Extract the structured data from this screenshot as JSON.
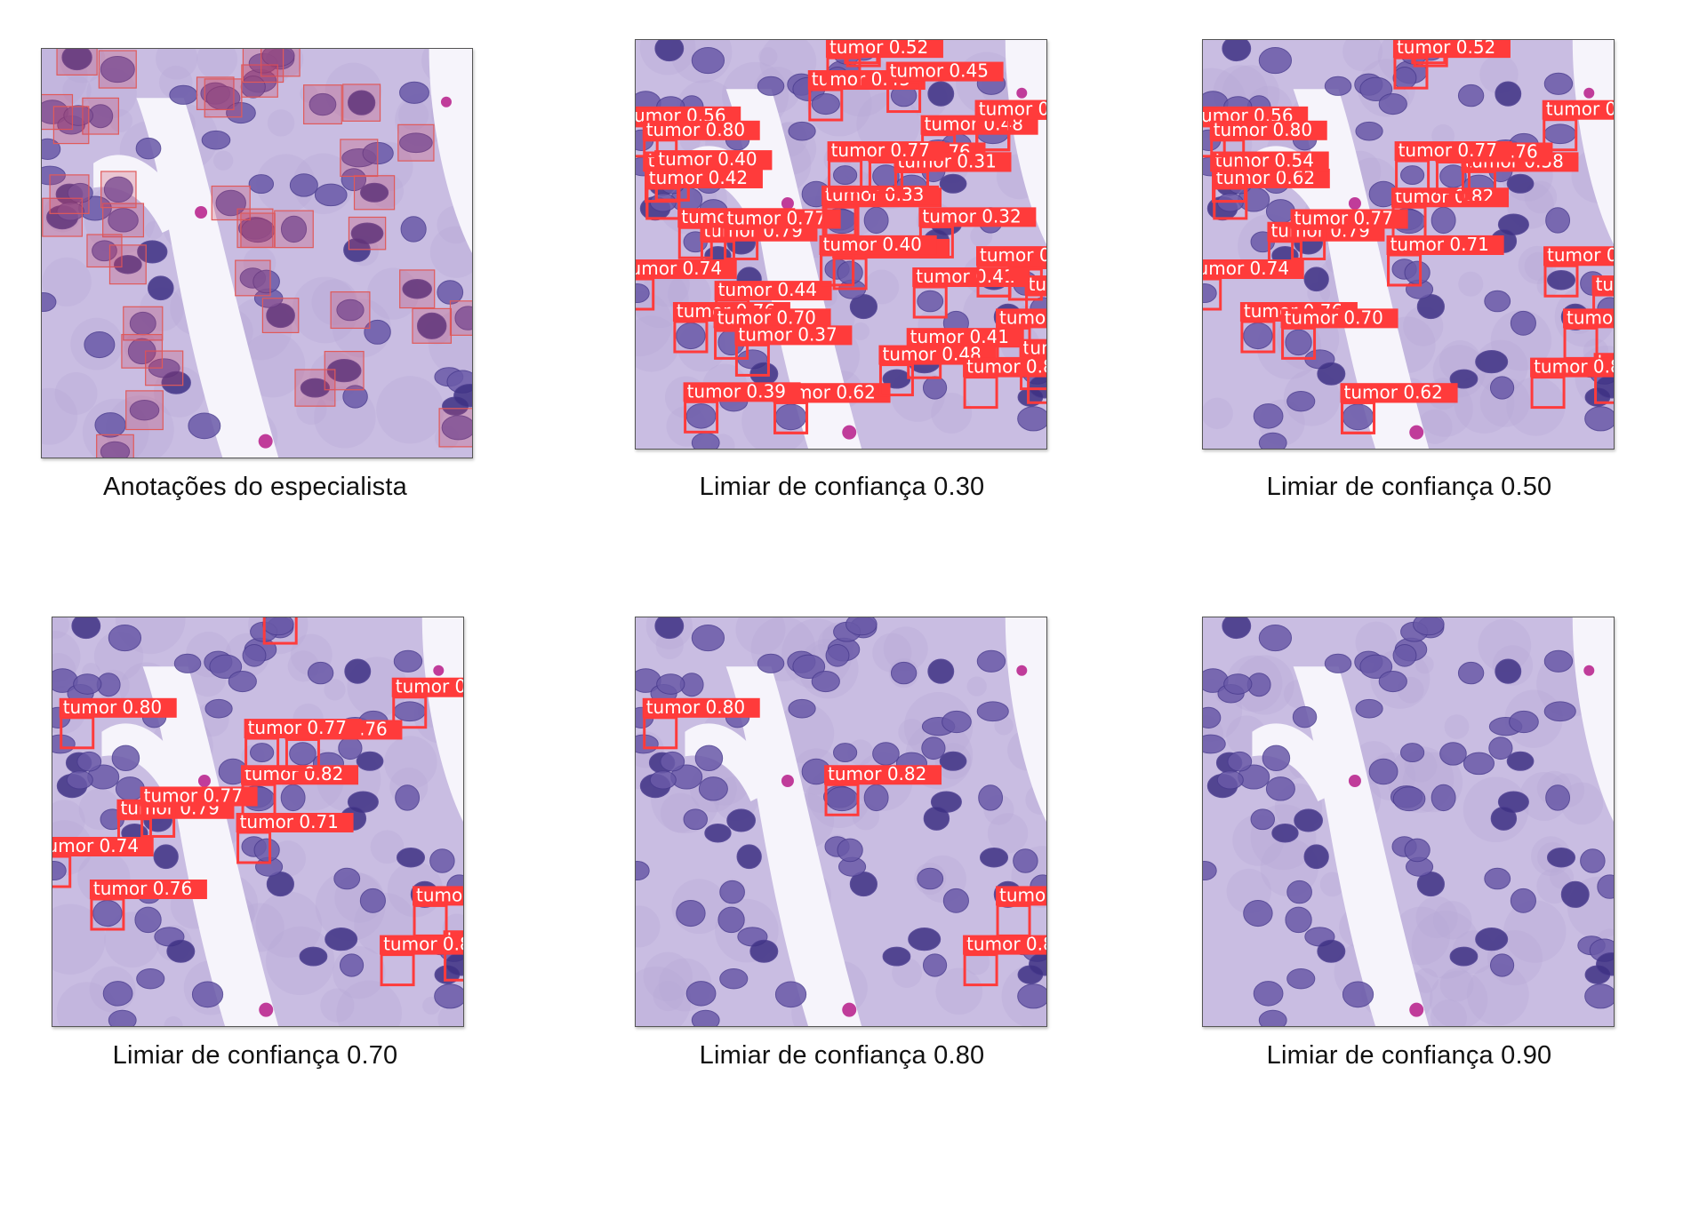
{
  "figure": {
    "panels": [
      {
        "caption": "Anotações do especialista",
        "mode": "expert"
      },
      {
        "caption": "Limiar de confiança 0.30",
        "mode": "pred",
        "threshold": 0.3
      },
      {
        "caption": "Limiar de confiança 0.50",
        "mode": "pred",
        "threshold": 0.5
      },
      {
        "caption": "Limiar de confiança 0.70",
        "mode": "pred",
        "threshold": 0.7
      },
      {
        "caption": "Limiar de confiança 0.80",
        "mode": "pred",
        "threshold": 0.8
      },
      {
        "caption": "Limiar de confiança 0.90",
        "mode": "pred",
        "threshold": 0.9
      }
    ],
    "box_label": "tumor",
    "colors": {
      "pred_box": "#ff3b3b",
      "expert_box": "#e05a5a",
      "tissue_bg": "#c9bde2",
      "nucleus": "#6a5aa8",
      "lumen": "#f6f4fb"
    }
  }
}
